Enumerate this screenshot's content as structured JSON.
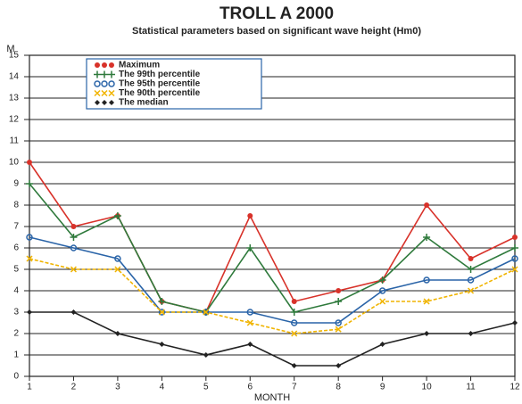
{
  "chart_data": {
    "type": "line",
    "title": "TROLL A 2000",
    "subtitle": "Statistical parameters based on significant wave height (Hm0)",
    "y_label": "M",
    "x_label": "MONTH",
    "x": [
      1,
      2,
      3,
      4,
      5,
      6,
      7,
      8,
      9,
      10,
      11,
      12
    ],
    "xlim": [
      1,
      12
    ],
    "xticks": [
      1,
      2,
      3,
      4,
      5,
      6,
      7,
      8,
      9,
      10,
      11,
      12
    ],
    "ylim": [
      0,
      15
    ],
    "yticks": [
      0,
      1,
      2,
      3,
      4,
      5,
      6,
      7,
      8,
      9,
      10,
      11,
      12,
      13,
      14,
      15
    ],
    "grid": true,
    "legend": "top-left",
    "series": [
      {
        "name": "Maximum",
        "color": "#d8322a",
        "marker": "circle",
        "values": [
          10,
          7,
          7.5,
          3.5,
          3,
          7.5,
          3.5,
          4,
          4.5,
          8,
          5.5,
          6.5
        ]
      },
      {
        "name": "The 99th percentile",
        "color": "#2f7a3c",
        "marker": "plus",
        "values": [
          9,
          6.5,
          7.5,
          3.5,
          3,
          6,
          3,
          3.5,
          4.5,
          6.5,
          5,
          6
        ]
      },
      {
        "name": "The 95th percentile",
        "color": "#2a64a8",
        "marker": "ring",
        "values": [
          6.5,
          6,
          5.5,
          3,
          3,
          3,
          2.5,
          2.5,
          4,
          4.5,
          4.5,
          5.5
        ]
      },
      {
        "name": "The 90th percentile",
        "color": "#f0b400",
        "marker": "cross",
        "values": [
          5.5,
          5,
          5,
          3,
          3,
          2.5,
          2,
          2.2,
          3.5,
          3.5,
          4,
          5
        ]
      },
      {
        "name": "The median",
        "color": "#222222",
        "marker": "diamond",
        "values": [
          3,
          3,
          2,
          1.5,
          1,
          1.5,
          0.5,
          0.5,
          1.5,
          2,
          2,
          2.5
        ]
      }
    ]
  }
}
